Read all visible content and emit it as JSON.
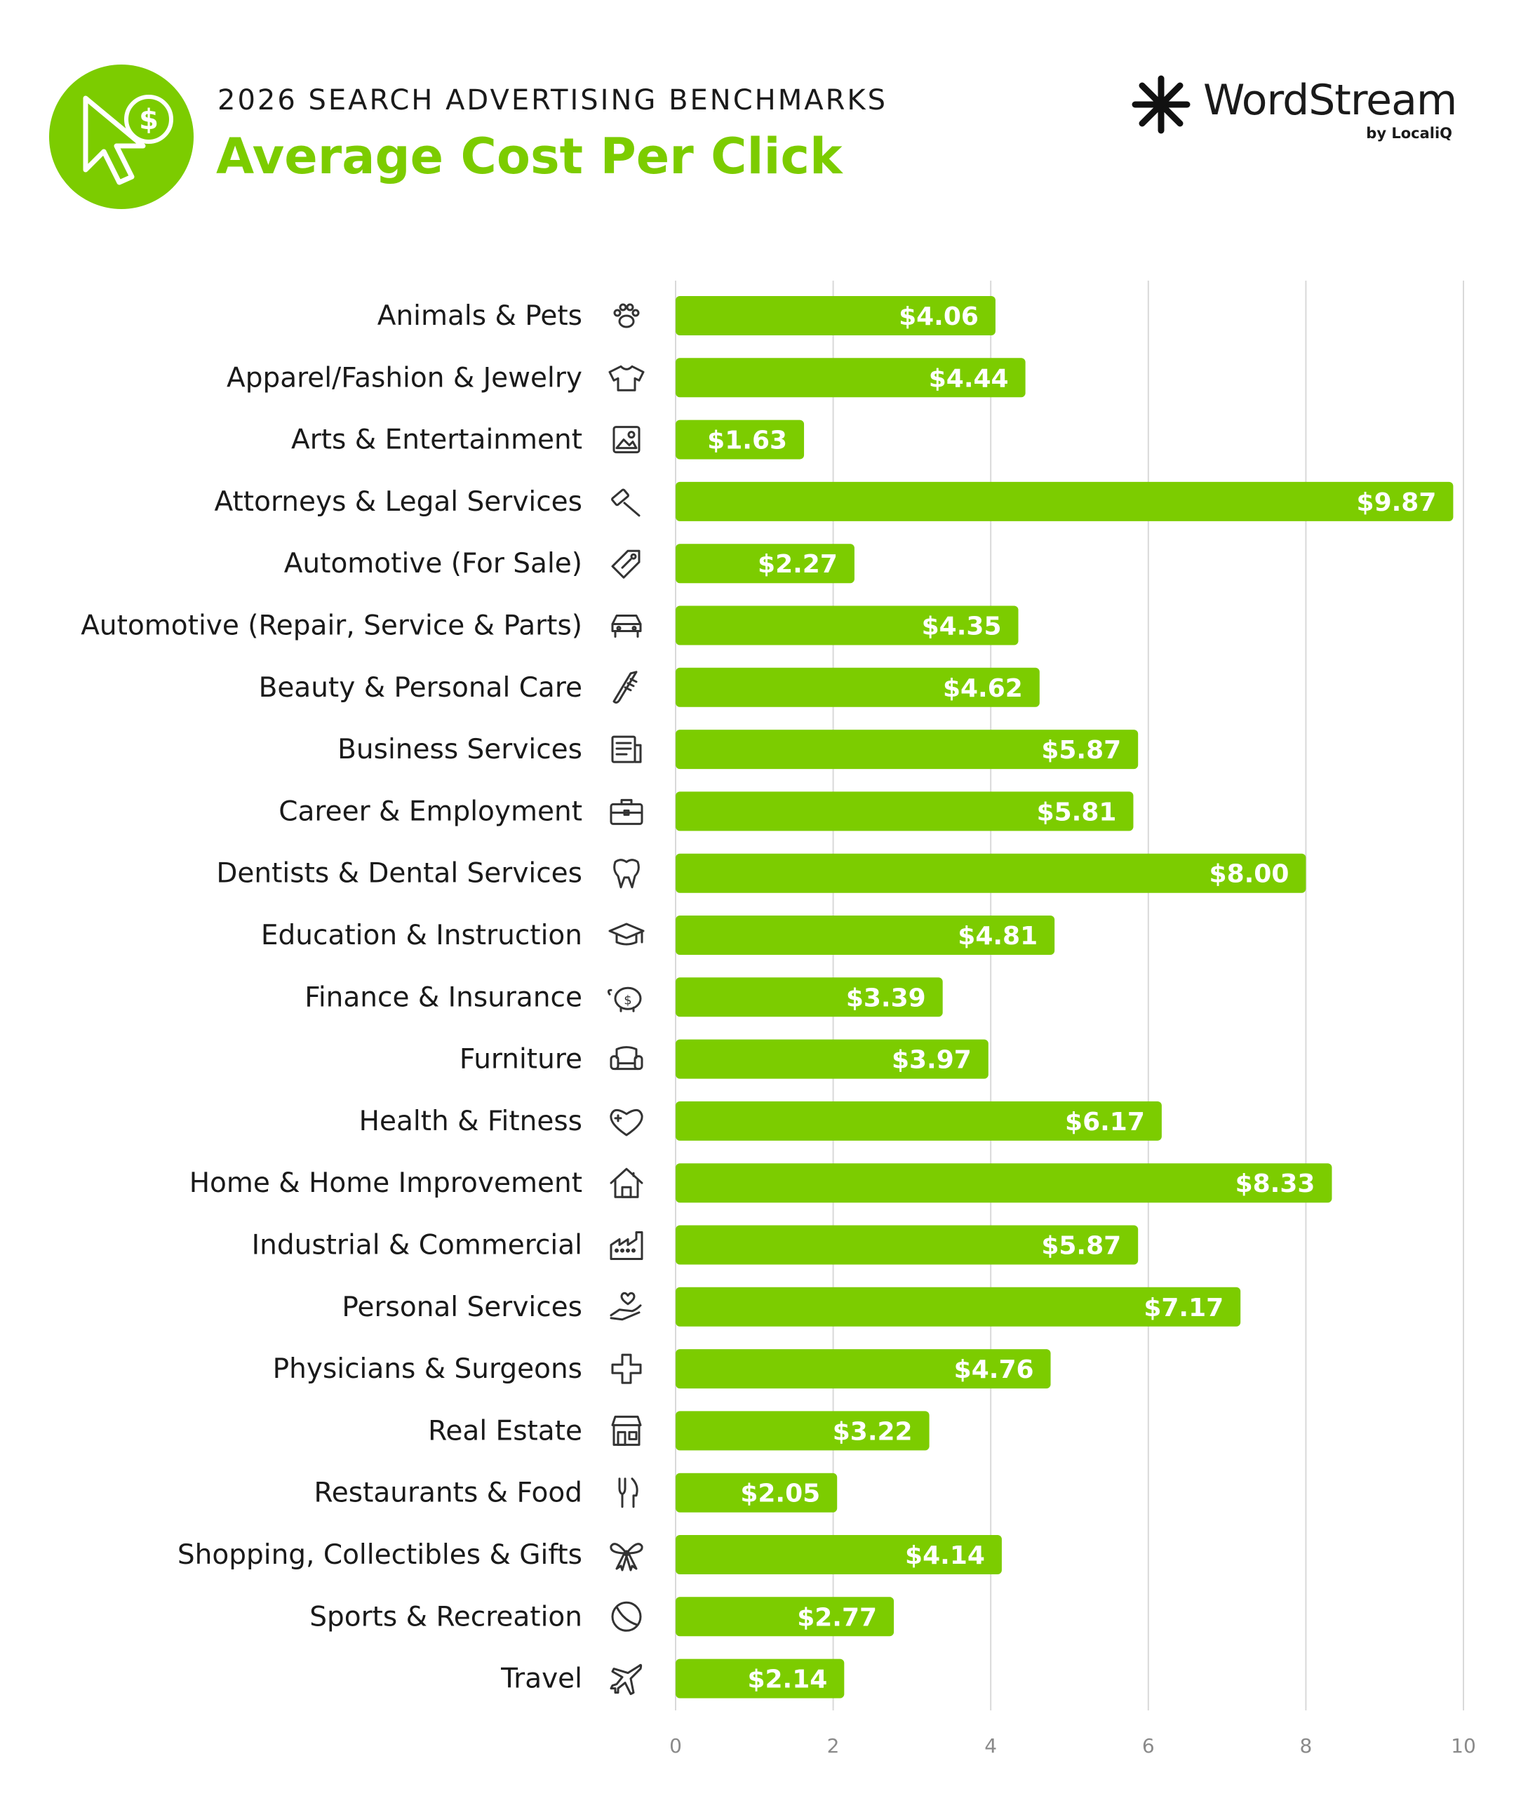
{
  "header": {
    "supertitle": "2026 SEARCH ADVERTISING BENCHMARKS",
    "title": "Average Cost Per Click",
    "badge_icon": "cursor-dollar-icon",
    "brand_name": "WordStream",
    "brand_sub": "by LocaliQ",
    "brand_icon": "wordstream-logo-icon"
  },
  "colors": {
    "accent": "#7ccc00",
    "text": "#1a1a1a",
    "grid": "#d9d9d9",
    "tick": "#8a8a8a"
  },
  "chart_data": {
    "type": "bar",
    "orientation": "horizontal",
    "categories": [
      "Animals & Pets",
      "Apparel/Fashion & Jewelry",
      "Arts & Entertainment",
      "Attorneys & Legal Services",
      "Automotive (For Sale)",
      "Automotive (Repair, Service & Parts)",
      "Beauty & Personal Care",
      "Business Services",
      "Career & Employment",
      "Dentists & Dental Services",
      "Education & Instruction",
      "Finance & Insurance",
      "Furniture",
      "Health & Fitness",
      "Home & Home Improvement",
      "Industrial & Commercial",
      "Personal Services",
      "Physicians & Surgeons",
      "Real Estate",
      "Restaurants & Food",
      "Shopping, Collectibles & Gifts",
      "Sports & Recreation",
      "Travel"
    ],
    "values": [
      4.06,
      4.44,
      1.63,
      9.87,
      2.27,
      4.35,
      4.62,
      5.87,
      5.81,
      8.0,
      4.81,
      3.39,
      3.97,
      6.17,
      8.33,
      5.87,
      7.17,
      4.76,
      3.22,
      2.05,
      4.14,
      2.77,
      2.14
    ],
    "value_labels": [
      "$4.06",
      "$4.44",
      "$1.63",
      "$9.87",
      "$2.27",
      "$4.35",
      "$4.62",
      "$5.87",
      "$5.81",
      "$8.00",
      "$4.81",
      "$3.39",
      "$3.97",
      "$6.17",
      "$8.33",
      "$5.87",
      "$7.17",
      "$4.76",
      "$3.22",
      "$2.05",
      "$4.14",
      "$2.77",
      "$2.14"
    ],
    "icons": [
      "paw-icon",
      "tshirt-icon",
      "picture-icon",
      "gavel-icon",
      "price-tag-icon",
      "car-icon",
      "comb-icon",
      "document-icon",
      "briefcase-icon",
      "tooth-icon",
      "graduation-cap-icon",
      "piggy-bank-icon",
      "armchair-icon",
      "heart-plus-icon",
      "house-icon",
      "factory-icon",
      "hand-heart-icon",
      "medical-cross-icon",
      "storefront-icon",
      "fork-knife-icon",
      "gift-bow-icon",
      "ball-icon",
      "airplane-icon"
    ],
    "xlim": [
      0,
      10
    ],
    "xticks": [
      "0",
      "2",
      "4",
      "6",
      "8",
      "10"
    ],
    "grid": true,
    "bar_color": "#7ccc00"
  }
}
